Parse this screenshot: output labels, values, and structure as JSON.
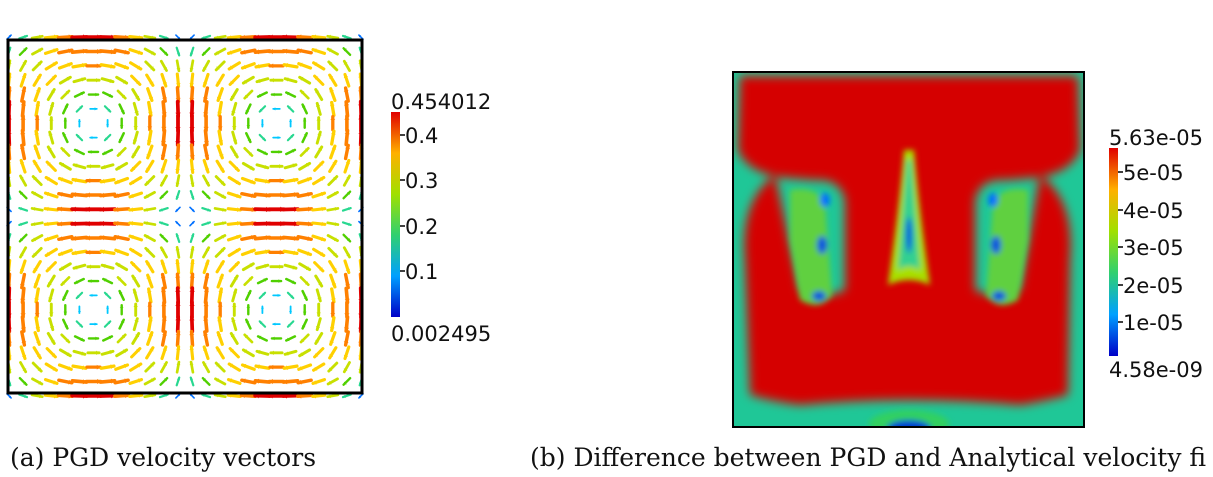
{
  "figure_a": {
    "caption": "(a) PGD velocity vectors",
    "colorbar": {
      "max_label": "0.454012",
      "min_label": "0.002495",
      "ticks": [
        "0.4",
        "0.3",
        "0.2",
        "0.1"
      ],
      "range": [
        0.002495,
        0.454012
      ]
    }
  },
  "figure_b": {
    "caption": "(b) Difference between PGD and Analytical velocity fi",
    "colorbar": {
      "max_label": "5.63e-05",
      "min_label": "4.58e-09",
      "ticks": [
        "5e-05",
        "4e-05",
        "3e-05",
        "2e-05",
        "1e-05"
      ],
      "range": [
        4.58e-09,
        5.63e-05
      ]
    }
  },
  "colors": {
    "colormap": [
      "#0000c8",
      "#0070ff",
      "#00c8ff",
      "#28d890",
      "#50d000",
      "#c8e000",
      "#ffd000",
      "#ff8000",
      "#e00000"
    ],
    "field_red": "#d50000",
    "frame": "#000000"
  }
}
